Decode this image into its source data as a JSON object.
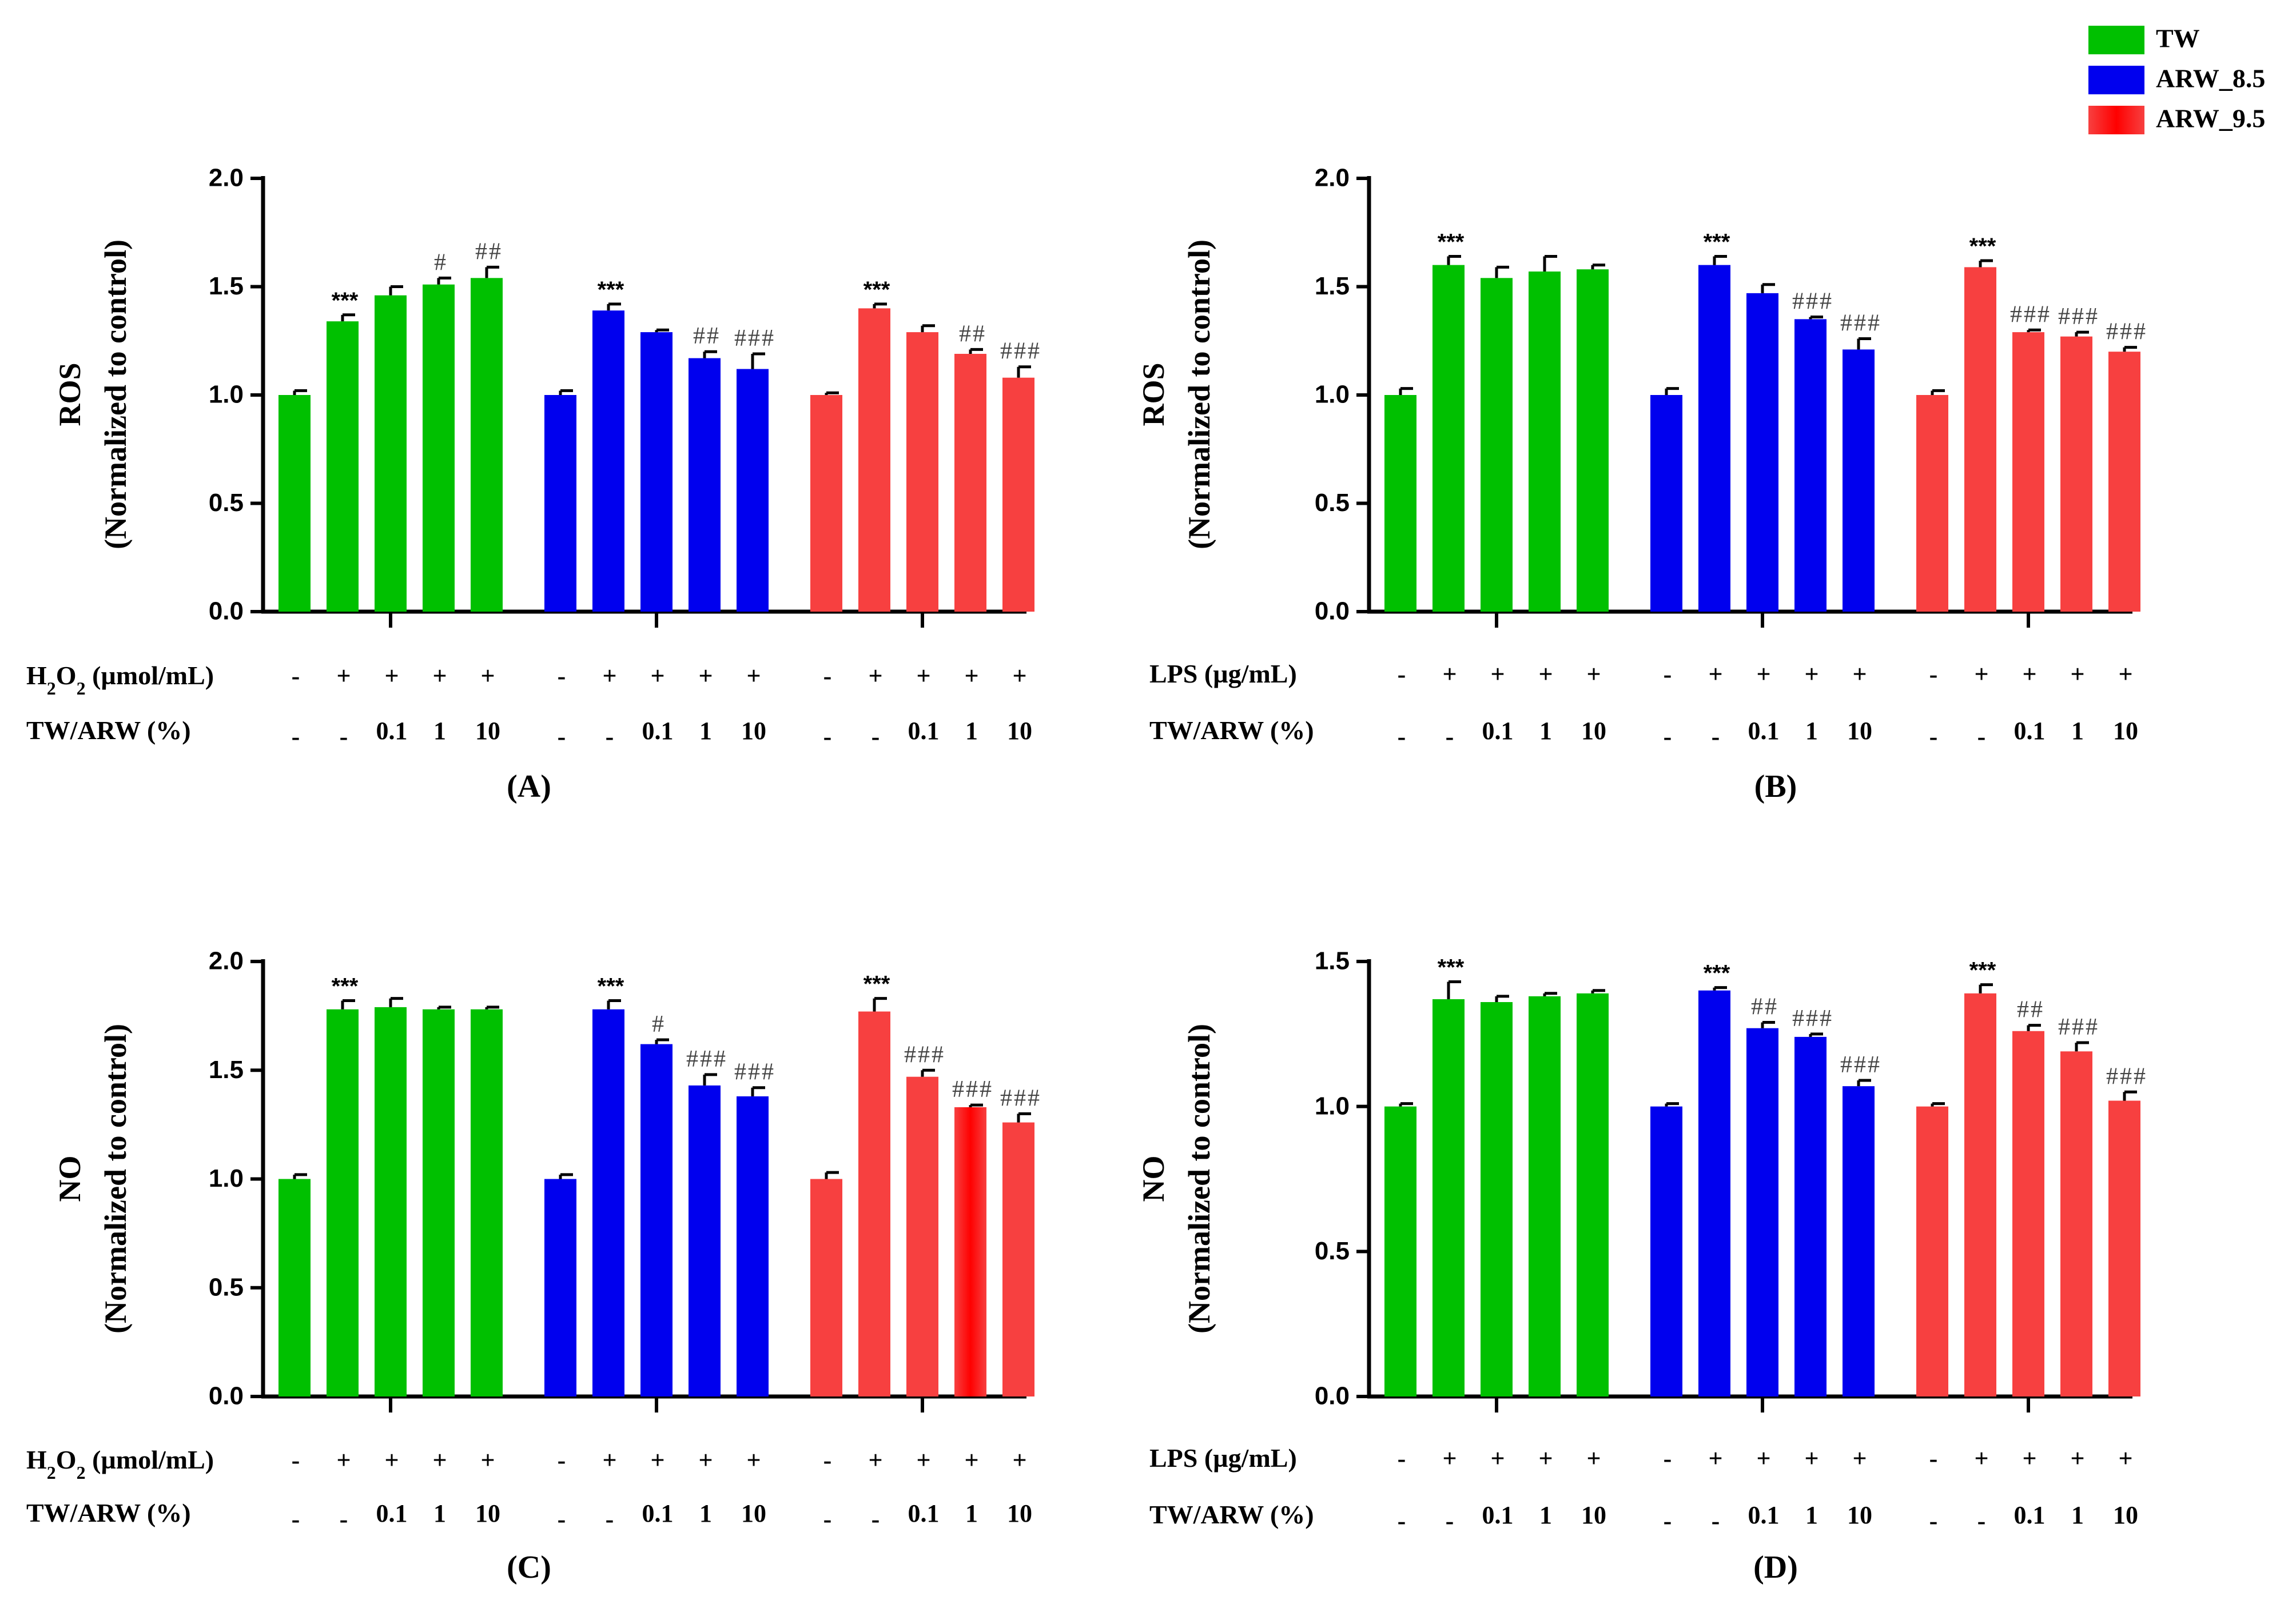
{
  "legend": [
    {
      "name": "TW",
      "color": "#00c000"
    },
    {
      "name": "ARW_8.5",
      "color": "#0000ee"
    },
    {
      "name": "ARW_9.5",
      "color": "#f74040",
      "center": "#ff0000"
    }
  ],
  "chart_data": [
    {
      "type": "bar",
      "panel": "(A)",
      "ylabel_main": "ROS",
      "ylabel_sub": "(Normalized to control)",
      "ylim": [
        0,
        2.0
      ],
      "yticks": [
        "0.0",
        "0.5",
        "1.0",
        "1.5",
        "2.0"
      ],
      "row1_label_parts": [
        "H",
        "2",
        "O",
        "2",
        " (µmol/mL)"
      ],
      "row2_label": "TW/ARW (%)",
      "row1": [
        "-",
        "+",
        "+",
        "+",
        "+"
      ],
      "row2": [
        "-",
        "-",
        "0.1",
        "1",
        "10"
      ],
      "series": [
        {
          "name": "TW",
          "values": [
            1.0,
            1.34,
            1.46,
            1.51,
            1.54
          ],
          "errors": [
            0.02,
            0.03,
            0.04,
            0.03,
            0.05
          ],
          "labels": [
            "",
            "***",
            "",
            "#",
            "##"
          ]
        },
        {
          "name": "ARW_8.5",
          "values": [
            1.0,
            1.39,
            1.29,
            1.17,
            1.12
          ],
          "errors": [
            0.02,
            0.03,
            0.01,
            0.03,
            0.07
          ],
          "labels": [
            "",
            "***",
            "",
            "##",
            "###"
          ]
        },
        {
          "name": "ARW_9.5",
          "values": [
            1.0,
            1.4,
            1.29,
            1.19,
            1.08
          ],
          "errors": [
            0.01,
            0.02,
            0.03,
            0.02,
            0.05
          ],
          "labels": [
            "",
            "***",
            "",
            "##",
            "###"
          ]
        }
      ]
    },
    {
      "type": "bar",
      "panel": "(B)",
      "ylabel_main": "ROS",
      "ylabel_sub": "(Normalized to control)",
      "ylim": [
        0,
        2.0
      ],
      "yticks": [
        "0.0",
        "0.5",
        "1.0",
        "1.5",
        "2.0"
      ],
      "row1_label_parts": [
        "LPS (µg/mL)"
      ],
      "row2_label": "TW/ARW (%)",
      "row1": [
        "-",
        "+",
        "+",
        "+",
        "+"
      ],
      "row2": [
        "-",
        "-",
        "0.1",
        "1",
        "10"
      ],
      "series": [
        {
          "name": "TW",
          "values": [
            1.0,
            1.6,
            1.54,
            1.57,
            1.58
          ],
          "errors": [
            0.03,
            0.04,
            0.05,
            0.07,
            0.02
          ],
          "labels": [
            "",
            "***",
            "",
            "",
            ""
          ]
        },
        {
          "name": "ARW_8.5",
          "values": [
            1.0,
            1.6,
            1.47,
            1.35,
            1.21
          ],
          "errors": [
            0.03,
            0.04,
            0.04,
            0.01,
            0.05
          ],
          "labels": [
            "",
            "***",
            "",
            "###",
            "###"
          ]
        },
        {
          "name": "ARW_9.5",
          "values": [
            1.0,
            1.59,
            1.29,
            1.27,
            1.2
          ],
          "errors": [
            0.02,
            0.03,
            0.01,
            0.02,
            0.02
          ],
          "labels": [
            "",
            "***",
            "###",
            "###",
            "###"
          ]
        }
      ]
    },
    {
      "type": "bar",
      "panel": "(C)",
      "ylabel_main": "NO",
      "ylabel_sub": "(Normalized to control)",
      "ylim": [
        0,
        2.0
      ],
      "yticks": [
        "0.0",
        "0.5",
        "1.0",
        "1.5",
        "2.0"
      ],
      "row1_label_parts": [
        "H",
        "2",
        "O",
        "2",
        " (µmol/mL)"
      ],
      "row2_label": "TW/ARW (%)",
      "row1": [
        "-",
        "+",
        "+",
        "+",
        "+"
      ],
      "row2": [
        "-",
        "-",
        "0.1",
        "1",
        "10"
      ],
      "series": [
        {
          "name": "TW",
          "values": [
            1.0,
            1.78,
            1.79,
            1.78,
            1.78
          ],
          "errors": [
            0.02,
            0.04,
            0.04,
            0.01,
            0.01
          ],
          "labels": [
            "",
            "***",
            "",
            "",
            ""
          ]
        },
        {
          "name": "ARW_8.5",
          "values": [
            1.0,
            1.78,
            1.62,
            1.43,
            1.38
          ],
          "errors": [
            0.02,
            0.04,
            0.02,
            0.05,
            0.04
          ],
          "labels": [
            "",
            "***",
            "#",
            "###",
            "###"
          ]
        },
        {
          "name": "ARW_9.5",
          "values": [
            1.0,
            1.77,
            1.47,
            1.33,
            1.26
          ],
          "errors": [
            0.03,
            0.06,
            0.03,
            0.01,
            0.04
          ],
          "labels": [
            "",
            "***",
            "###",
            "###",
            "###"
          ]
        }
      ]
    },
    {
      "type": "bar",
      "panel": "(D)",
      "ylabel_main": "NO",
      "ylabel_sub": "(Normalized to control)",
      "ylim": [
        0,
        1.5
      ],
      "yticks": [
        "0.0",
        "0.5",
        "1.0",
        "1.5"
      ],
      "row1_label_parts": [
        "LPS (µg/mL)"
      ],
      "row2_label": "TW/ARW (%)",
      "row1": [
        "-",
        "+",
        "+",
        "+",
        "+"
      ],
      "row2": [
        "-",
        "-",
        "0.1",
        "1",
        "10"
      ],
      "series": [
        {
          "name": "TW",
          "values": [
            1.0,
            1.37,
            1.36,
            1.38,
            1.39
          ],
          "errors": [
            0.01,
            0.06,
            0.02,
            0.01,
            0.01
          ],
          "labels": [
            "",
            "***",
            "",
            "",
            ""
          ]
        },
        {
          "name": "ARW_8.5",
          "values": [
            1.0,
            1.4,
            1.27,
            1.24,
            1.07
          ],
          "errors": [
            0.01,
            0.01,
            0.02,
            0.01,
            0.02
          ],
          "labels": [
            "",
            "***",
            "##",
            "###",
            "###"
          ]
        },
        {
          "name": "ARW_9.5",
          "values": [
            1.0,
            1.39,
            1.26,
            1.19,
            1.02
          ],
          "errors": [
            0.01,
            0.03,
            0.02,
            0.03,
            0.03
          ],
          "labels": [
            "",
            "***",
            "##",
            "###",
            "###"
          ]
        }
      ]
    }
  ]
}
